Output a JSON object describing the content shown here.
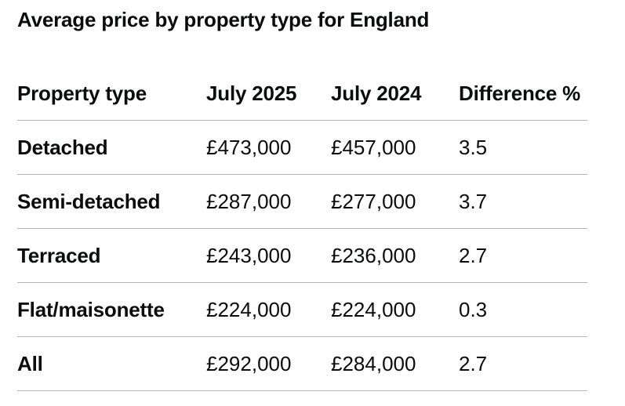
{
  "table": {
    "caption": "Average price by property type for England",
    "headers": [
      "Property type",
      "July 2025",
      "July  2024",
      "Difference %"
    ],
    "rows": [
      [
        "Detached",
        "£473,000",
        "£457,000",
        "3.5"
      ],
      [
        "Semi-detached",
        "£287,000",
        "£277,000",
        "3.7"
      ],
      [
        "Terraced",
        "£243,000",
        "£236,000",
        "2.7"
      ],
      [
        "Flat/maisonette",
        "£224,000",
        "£224,000",
        "0.3"
      ],
      [
        "All",
        "£292,000",
        "£284,000",
        "2.7"
      ]
    ]
  }
}
